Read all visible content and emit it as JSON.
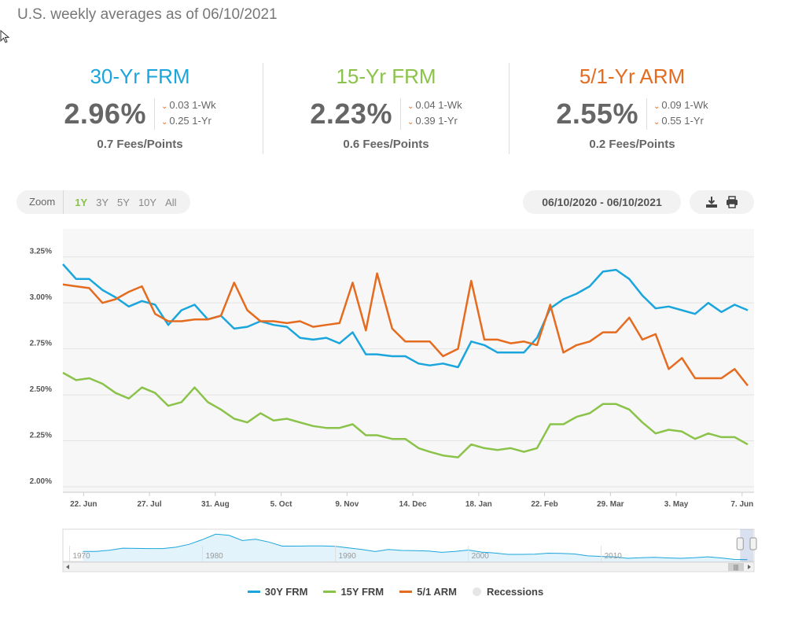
{
  "header": {
    "note": "U.S. weekly averages as of 06/10/2021"
  },
  "rates": [
    {
      "title": "30-Yr FRM",
      "color": "#1aa6dc",
      "value": "2.96%",
      "wk": "0.03 1-Wk",
      "yr": "0.25 1-Yr",
      "fees": "0.7 Fees/Points"
    },
    {
      "title": "15-Yr FRM",
      "color": "#8bc34a",
      "value": "2.23%",
      "wk": "0.04 1-Wk",
      "yr": "0.39 1-Yr",
      "fees": "0.6 Fees/Points"
    },
    {
      "title": "5/1-Yr ARM",
      "color": "#e56b1f",
      "value": "2.55%",
      "wk": "0.09 1-Wk",
      "yr": "0.55 1-Yr",
      "fees": "0.2 Fees/Points"
    }
  ],
  "zoom": {
    "label": "Zoom",
    "options": [
      "1Y",
      "3Y",
      "5Y",
      "10Y",
      "All"
    ],
    "active": "1Y"
  },
  "date_range": "06/10/2020 - 06/10/2021",
  "icons": {
    "download": "download-icon",
    "print": "print-icon"
  },
  "legend": [
    {
      "label": "30Y FRM",
      "color": "#1aa6dc"
    },
    {
      "label": "15Y FRM",
      "color": "#8bc34a"
    },
    {
      "label": "5/1 ARM",
      "color": "#e56b1f"
    },
    {
      "label": "Recessions",
      "color": "#e6e6e6"
    }
  ],
  "chart_data": {
    "type": "line",
    "x": [
      "2020-06-11",
      "2020-06-18",
      "2020-06-25",
      "2020-07-02",
      "2020-07-09",
      "2020-07-16",
      "2020-07-23",
      "2020-07-30",
      "2020-08-06",
      "2020-08-13",
      "2020-08-20",
      "2020-08-27",
      "2020-09-03",
      "2020-09-10",
      "2020-09-17",
      "2020-09-24",
      "2020-10-01",
      "2020-10-08",
      "2020-10-15",
      "2020-10-22",
      "2020-10-29",
      "2020-11-05",
      "2020-11-12",
      "2020-11-19",
      "2020-11-25",
      "2020-12-03",
      "2020-12-10",
      "2020-12-17",
      "2020-12-23",
      "2020-12-30",
      "2021-01-07",
      "2021-01-14",
      "2021-01-21",
      "2021-01-28",
      "2021-02-04",
      "2021-02-11",
      "2021-02-18",
      "2021-02-25",
      "2021-03-04",
      "2021-03-11",
      "2021-03-18",
      "2021-03-25",
      "2021-04-01",
      "2021-04-08",
      "2021-04-15",
      "2021-04-22",
      "2021-04-29",
      "2021-05-06",
      "2021-05-13",
      "2021-05-20",
      "2021-05-27",
      "2021-06-03",
      "2021-06-10"
    ],
    "series": [
      {
        "name": "30Y FRM",
        "color": "#1aa6dc",
        "values": [
          3.21,
          3.13,
          3.13,
          3.07,
          3.03,
          2.98,
          3.01,
          2.99,
          2.88,
          2.96,
          2.99,
          2.91,
          2.93,
          2.86,
          2.87,
          2.9,
          2.88,
          2.87,
          2.81,
          2.8,
          2.81,
          2.78,
          2.84,
          2.72,
          2.72,
          2.71,
          2.71,
          2.67,
          2.66,
          2.67,
          2.65,
          2.79,
          2.77,
          2.73,
          2.73,
          2.73,
          2.81,
          2.97,
          3.02,
          3.05,
          3.09,
          3.17,
          3.18,
          3.13,
          3.04,
          2.97,
          2.98,
          2.96,
          2.94,
          3.0,
          2.95,
          2.99,
          2.96
        ]
      },
      {
        "name": "15Y FRM",
        "color": "#8bc34a",
        "values": [
          2.62,
          2.58,
          2.59,
          2.56,
          2.51,
          2.48,
          2.54,
          2.51,
          2.44,
          2.46,
          2.54,
          2.46,
          2.42,
          2.37,
          2.35,
          2.4,
          2.36,
          2.37,
          2.35,
          2.33,
          2.32,
          2.32,
          2.34,
          2.28,
          2.28,
          2.26,
          2.26,
          2.21,
          2.19,
          2.17,
          2.16,
          2.23,
          2.21,
          2.2,
          2.21,
          2.19,
          2.21,
          2.34,
          2.34,
          2.38,
          2.4,
          2.45,
          2.45,
          2.42,
          2.35,
          2.29,
          2.31,
          2.3,
          2.26,
          2.29,
          2.27,
          2.27,
          2.23
        ]
      },
      {
        "name": "5/1 ARM",
        "color": "#e56b1f",
        "values": [
          3.1,
          3.09,
          3.08,
          3.0,
          3.02,
          3.06,
          3.09,
          2.94,
          2.9,
          2.9,
          2.91,
          2.91,
          2.93,
          3.11,
          2.96,
          2.9,
          2.9,
          2.89,
          2.9,
          2.87,
          2.88,
          2.89,
          3.11,
          2.85,
          3.16,
          2.86,
          2.79,
          2.79,
          2.79,
          2.71,
          2.75,
          3.12,
          2.8,
          2.8,
          2.78,
          2.79,
          2.77,
          2.99,
          2.73,
          2.77,
          2.79,
          2.84,
          2.84,
          2.92,
          2.8,
          2.83,
          2.64,
          2.7,
          2.59,
          2.59,
          2.59,
          2.64,
          2.55
        ]
      }
    ],
    "ylim": [
      2.0,
      3.3
    ],
    "yticks": [
      "2.00%",
      "2.25%",
      "2.50%",
      "2.75%",
      "3.00%",
      "3.25%"
    ],
    "ytick_values": [
      2.0,
      2.25,
      2.5,
      2.75,
      3.0,
      3.25
    ],
    "xticks": [
      {
        "label": "22. Jun",
        "date": "2020-06-22"
      },
      {
        "label": "27. Jul",
        "date": "2020-07-27"
      },
      {
        "label": "31. Aug",
        "date": "2020-08-31"
      },
      {
        "label": "5. Oct",
        "date": "2020-10-05"
      },
      {
        "label": "9. Nov",
        "date": "2020-11-09"
      },
      {
        "label": "14. Dec",
        "date": "2020-12-14"
      },
      {
        "label": "18. Jan",
        "date": "2021-01-18"
      },
      {
        "label": "22. Feb",
        "date": "2021-02-22"
      },
      {
        "label": "29. Mar",
        "date": "2021-03-29"
      },
      {
        "label": "3. May",
        "date": "2021-05-03"
      },
      {
        "label": "7. Jun",
        "date": "2021-06-07"
      }
    ],
    "grid": true,
    "legend_position": "bottom",
    "navigator": {
      "year_labels": [
        "1970",
        "1980",
        "1990",
        "2000",
        "2010"
      ],
      "year_values": [
        1970,
        1980,
        1990,
        2000,
        2010
      ],
      "year_range": [
        1969.5,
        2021.5
      ],
      "selection_years": [
        2020.45,
        2021.45
      ],
      "history": [
        [
          1971,
          7.4
        ],
        [
          1972,
          7.4
        ],
        [
          1973,
          8.0
        ],
        [
          1974,
          9.1
        ],
        [
          1975,
          9.0
        ],
        [
          1976,
          8.9
        ],
        [
          1977,
          8.9
        ],
        [
          1978,
          9.6
        ],
        [
          1979,
          11.2
        ],
        [
          1980,
          13.7
        ],
        [
          1981,
          16.6
        ],
        [
          1982,
          16.0
        ],
        [
          1983,
          13.2
        ],
        [
          1984,
          13.9
        ],
        [
          1985,
          12.4
        ],
        [
          1986,
          10.2
        ],
        [
          1987,
          10.2
        ],
        [
          1988,
          10.3
        ],
        [
          1989,
          10.3
        ],
        [
          1990,
          10.1
        ],
        [
          1991,
          9.3
        ],
        [
          1992,
          8.4
        ],
        [
          1993,
          7.3
        ],
        [
          1994,
          8.4
        ],
        [
          1995,
          7.9
        ],
        [
          1996,
          7.8
        ],
        [
          1997,
          7.6
        ],
        [
          1998,
          6.9
        ],
        [
          1999,
          7.4
        ],
        [
          2000,
          8.1
        ],
        [
          2001,
          7.0
        ],
        [
          2002,
          6.5
        ],
        [
          2003,
          5.8
        ],
        [
          2004,
          5.8
        ],
        [
          2005,
          5.9
        ],
        [
          2006,
          6.4
        ],
        [
          2007,
          6.3
        ],
        [
          2008,
          6.0
        ],
        [
          2009,
          5.0
        ],
        [
          2010,
          4.7
        ],
        [
          2011,
          4.5
        ],
        [
          2012,
          3.7
        ],
        [
          2013,
          4.0
        ],
        [
          2014,
          4.2
        ],
        [
          2015,
          3.9
        ],
        [
          2016,
          3.7
        ],
        [
          2017,
          4.0
        ],
        [
          2018,
          4.5
        ],
        [
          2019,
          3.9
        ],
        [
          2020,
          3.1
        ],
        [
          2021,
          3.0
        ]
      ]
    }
  }
}
